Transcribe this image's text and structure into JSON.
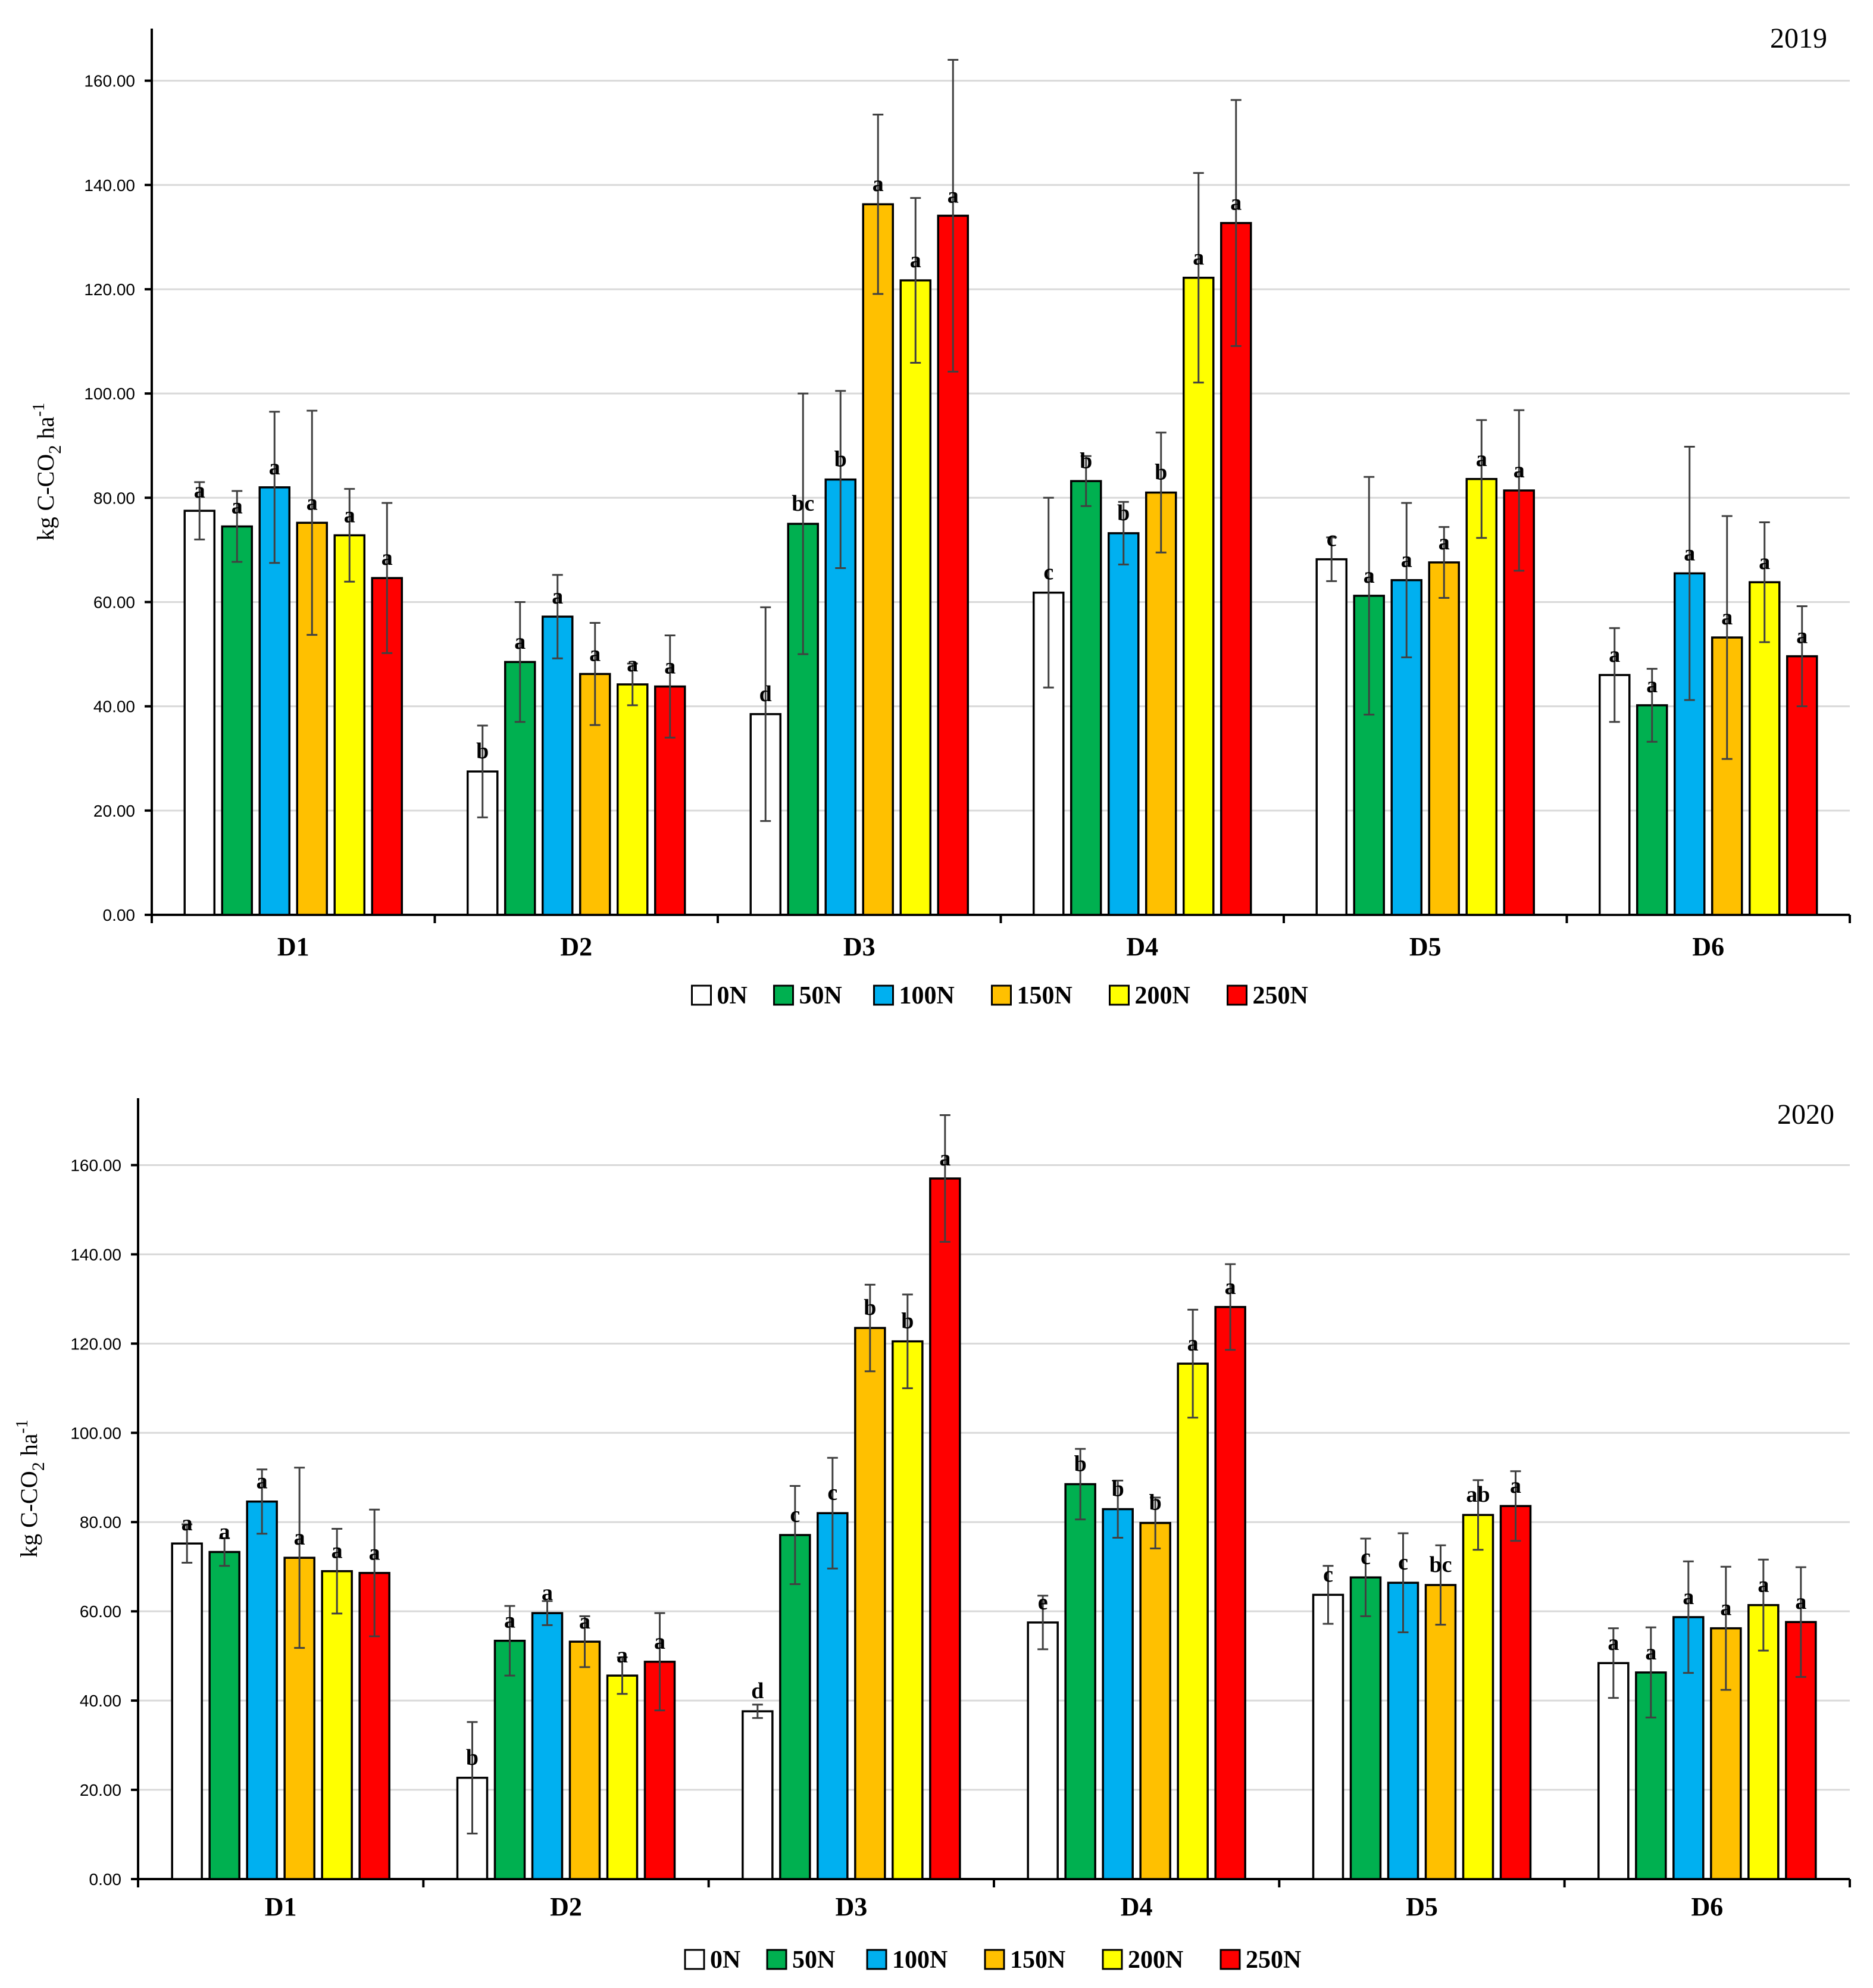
{
  "chart_data": [
    {
      "type": "bar",
      "title": "2019",
      "ylabel": "kg C-CO2 ha-1",
      "ylabel_main": "kg C-CO",
      "ylabel_sub": "2",
      "ylabel_unit": " ha",
      "ylabel_sup": "-1",
      "xlabel": "",
      "ylim": [
        0,
        170
      ],
      "yticks": [
        0,
        20,
        40,
        60,
        80,
        100,
        120,
        140,
        160
      ],
      "ytick_labels": [
        "0.00",
        "20.00",
        "40.00",
        "60.00",
        "80.00",
        "100.00",
        "120.00",
        "140.00",
        "160.00"
      ],
      "grid": true,
      "legend_position": "bottom-center",
      "categories": [
        "D1",
        "D2",
        "D3",
        "D4",
        "D5",
        "D6"
      ],
      "series": [
        {
          "name": "0N",
          "color": "#FFFFFF",
          "values": [
            77.5,
            27.5,
            38.5,
            61.8,
            68.2,
            46.0
          ],
          "errors": [
            5.5,
            8.8,
            20.5,
            18.2,
            4.2,
            9.0
          ],
          "letters": [
            "a",
            "b",
            "d",
            "c",
            "c",
            "a"
          ]
        },
        {
          "name": "50N",
          "color": "#00B050",
          "values": [
            74.5,
            48.5,
            75.0,
            83.2,
            61.2,
            40.2
          ],
          "errors": [
            6.8,
            11.5,
            25.0,
            4.8,
            22.8,
            7.0
          ],
          "letters": [
            "a",
            "a",
            "bc",
            "b",
            "a",
            "a"
          ]
        },
        {
          "name": "100N",
          "color": "#00B0F0",
          "values": [
            82.0,
            57.2,
            83.5,
            73.2,
            64.2,
            65.5
          ],
          "errors": [
            14.5,
            8.0,
            17.0,
            6.0,
            14.8,
            24.3
          ],
          "letters": [
            "a",
            "a",
            "b",
            "b",
            "a",
            "a"
          ]
        },
        {
          "name": "150N",
          "color": "#FFC000",
          "values": [
            75.2,
            46.2,
            136.3,
            81.0,
            67.6,
            53.2
          ],
          "errors": [
            21.5,
            9.8,
            17.2,
            11.5,
            6.8,
            23.3
          ],
          "letters": [
            "a",
            "a",
            "a",
            "b",
            "a",
            "a"
          ]
        },
        {
          "name": "200N",
          "color": "#FFFF00",
          "values": [
            72.8,
            44.2,
            121.7,
            122.2,
            83.6,
            63.8
          ],
          "errors": [
            8.9,
            4.0,
            15.8,
            20.1,
            11.3,
            11.5
          ],
          "letters": [
            "a",
            "a",
            "a",
            "a",
            "a",
            "a"
          ]
        },
        {
          "name": "250N",
          "color": "#FF0000",
          "values": [
            64.6,
            43.8,
            134.1,
            132.7,
            81.4,
            49.6
          ],
          "errors": [
            14.4,
            9.8,
            29.9,
            23.6,
            15.4,
            9.6
          ],
          "letters": [
            "a",
            "a",
            "a",
            "a",
            "a",
            "a"
          ]
        }
      ]
    },
    {
      "type": "bar",
      "title": "2020",
      "ylabel": "kg C-CO2 ha-1",
      "ylabel_main": "kg C-CO",
      "ylabel_sub": "2",
      "ylabel_unit": " ha",
      "ylabel_sup": "-1",
      "xlabel": "",
      "ylim": [
        0,
        175
      ],
      "yticks": [
        0,
        20,
        40,
        60,
        80,
        100,
        120,
        140,
        160
      ],
      "ytick_labels": [
        "0.00",
        "20.00",
        "40.00",
        "60.00",
        "80.00",
        "100.00",
        "120.00",
        "140.00",
        "160.00"
      ],
      "grid": true,
      "legend_position": "bottom-center",
      "categories": [
        "D1",
        "D2",
        "D3",
        "D4",
        "D5",
        "D6"
      ],
      "series": [
        {
          "name": "0N",
          "color": "#FFFFFF",
          "values": [
            75.2,
            22.7,
            37.6,
            57.5,
            63.7,
            48.4
          ],
          "errors": [
            4.3,
            12.5,
            1.5,
            6.0,
            6.5,
            7.8
          ],
          "letters": [
            "a",
            "b",
            "d",
            "e",
            "c",
            "a"
          ]
        },
        {
          "name": "50N",
          "color": "#00B050",
          "values": [
            73.3,
            53.4,
            77.1,
            88.5,
            67.6,
            46.3
          ],
          "errors": [
            3.1,
            7.8,
            11.0,
            7.9,
            8.7,
            10.1
          ],
          "letters": [
            "a",
            "a",
            "c",
            "b",
            "c",
            "a"
          ]
        },
        {
          "name": "100N",
          "color": "#00B0F0",
          "values": [
            84.6,
            59.6,
            82.0,
            82.9,
            66.4,
            58.7
          ],
          "errors": [
            7.2,
            2.7,
            12.4,
            6.4,
            11.1,
            12.5
          ],
          "letters": [
            "a",
            "a",
            "c",
            "b",
            "c",
            "a"
          ]
        },
        {
          "name": "150N",
          "color": "#FFC000",
          "values": [
            72.0,
            53.2,
            123.5,
            79.8,
            65.9,
            56.2
          ],
          "errors": [
            20.2,
            5.7,
            9.7,
            5.7,
            8.9,
            13.8
          ],
          "letters": [
            "a",
            "a",
            "b",
            "b",
            "bc",
            "a"
          ]
        },
        {
          "name": "200N",
          "color": "#FFFF00",
          "values": [
            69.0,
            45.6,
            120.5,
            115.5,
            81.6,
            61.4
          ],
          "errors": [
            9.5,
            4.1,
            10.5,
            12.1,
            7.8,
            10.2
          ],
          "letters": [
            "a",
            "a",
            "b",
            "a",
            "ab",
            "a"
          ]
        },
        {
          "name": "250N",
          "color": "#FF0000",
          "values": [
            68.6,
            48.7,
            157.0,
            128.2,
            83.6,
            57.6
          ],
          "errors": [
            14.2,
            10.9,
            14.2,
            9.6,
            7.8,
            12.3
          ],
          "letters": [
            "a",
            "a",
            "a",
            "a",
            "a",
            "a"
          ]
        }
      ]
    }
  ]
}
